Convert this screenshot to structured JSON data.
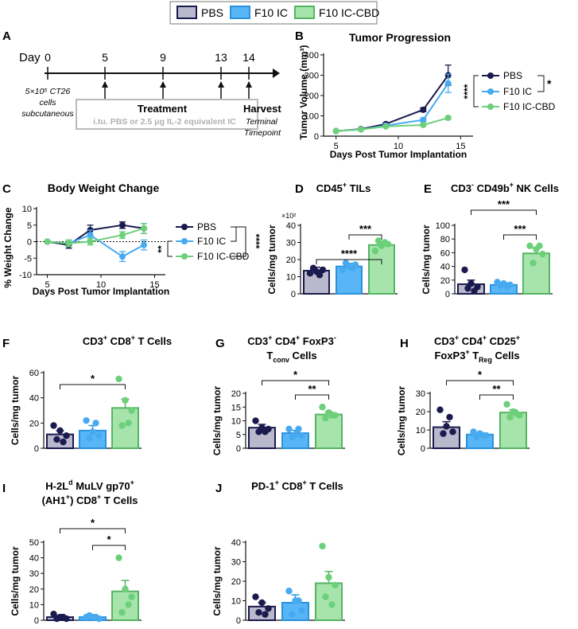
{
  "groups": [
    {
      "name": "PBS",
      "color": "#1a1a4e",
      "fill": "#b9b8cc"
    },
    {
      "name": "F10 IC",
      "color": "#47aaf0",
      "fill": "#58b6f7"
    },
    {
      "name": "F10 IC-CBD",
      "color": "#6cd07a",
      "fill": "#a6e4ac"
    }
  ],
  "legend": [
    "PBS",
    "F10 IC",
    "F10 IC-CBD"
  ],
  "panelA": {
    "letter": "A",
    "day_label": "Day",
    "days": [
      "0",
      "5",
      "9",
      "13",
      "14"
    ],
    "cells_line1": "5×10⁵ CT26",
    "cells_line2": "cells",
    "cells_line3": "subcutaneous",
    "treatment_title": "Treatment",
    "treatment_detail": "i.tu. PBS or 2.5 μg IL-2 equivalent IC",
    "harvest_title": "Harvest",
    "harvest_line1": "Terminal",
    "harvest_line2": "Timepoint"
  },
  "stars": {
    "s1": "*",
    "s2": "**",
    "s3": "***",
    "s4": "****"
  },
  "chart_data": [
    {
      "panel": "B",
      "type": "line",
      "title": "Tumor Progression",
      "xlabel": "Days Post Tumor Implantation",
      "ylabel": "Tumor Volume (mm³)",
      "xlim": [
        4,
        16
      ],
      "ylim": [
        0,
        400
      ],
      "xticks": [
        "5",
        "10",
        "15"
      ],
      "yticks": [
        "0",
        "100",
        "200",
        "300",
        "400"
      ],
      "x": [
        5,
        7,
        9,
        12,
        14
      ],
      "series": [
        {
          "name": "PBS",
          "values": [
            25,
            35,
            60,
            130,
            300
          ],
          "errors": [
            0,
            0,
            5,
            10,
            50
          ]
        },
        {
          "name": "F10 IC",
          "values": [
            25,
            33,
            52,
            80,
            260
          ],
          "errors": [
            0,
            0,
            5,
            10,
            45
          ]
        },
        {
          "name": "F10 IC-CBD",
          "values": [
            25,
            33,
            48,
            55,
            90
          ],
          "errors": [
            0,
            0,
            3,
            5,
            8
          ]
        }
      ],
      "significance": [
        "*",
        "****"
      ]
    },
    {
      "panel": "C",
      "type": "line",
      "title": "Body Weight Change",
      "xlabel": "Days Post Tumor Implantation",
      "ylabel": "% Weight Change",
      "xlim": [
        4,
        16
      ],
      "ylim": [
        -10,
        10
      ],
      "xticks": [
        "5",
        "10",
        "15"
      ],
      "yticks": [
        "-10",
        "-5",
        "0",
        "5",
        "10"
      ],
      "x": [
        5,
        7,
        9,
        12,
        14
      ],
      "series": [
        {
          "name": "PBS",
          "values": [
            0,
            -1,
            3.5,
            5,
            4
          ],
          "errors": [
            0,
            1,
            1.5,
            1,
            1.5
          ]
        },
        {
          "name": "F10 IC",
          "values": [
            0,
            -0.5,
            2,
            -4.5,
            -1
          ],
          "errors": [
            0,
            1,
            1.5,
            1.5,
            1.5
          ]
        },
        {
          "name": "F10 IC-CBD",
          "values": [
            0,
            -0.5,
            0,
            2,
            4
          ],
          "errors": [
            0,
            1,
            1,
            1,
            1.5
          ]
        }
      ],
      "significance": [
        "****",
        "**"
      ]
    },
    {
      "panel": "D",
      "type": "bar",
      "title_parts": [
        "CD45",
        "+",
        " TILs"
      ],
      "ylabel": "Cells/mg tumor",
      "axis_note": "×10²",
      "ylim": [
        0,
        40
      ],
      "yticks": [
        "0",
        "10",
        "20",
        "30",
        "40"
      ],
      "categories": [
        "PBS",
        "F10 IC",
        "F10 IC-CBD"
      ],
      "values": [
        13.5,
        16,
        28.5
      ],
      "errors": [
        2,
        1.8,
        1.5
      ],
      "points": [
        [
          12,
          13,
          14,
          15,
          11
        ],
        [
          14,
          16,
          17,
          18,
          15
        ],
        [
          25,
          28,
          29,
          31,
          30
        ]
      ],
      "significance": [
        {
          "from": 0,
          "to": 2,
          "label": "****"
        },
        {
          "from": 1,
          "to": 2,
          "label": "***"
        }
      ]
    },
    {
      "panel": "E",
      "type": "bar",
      "title_parts": [
        "CD3",
        "-",
        " CD49b",
        "+",
        " NK Cells"
      ],
      "ylabel": "Cells/mg tumor",
      "ylim": [
        0,
        100
      ],
      "yticks": [
        "0",
        "20",
        "40",
        "60",
        "80",
        "100"
      ],
      "categories": [
        "PBS",
        "F10 IC",
        "F10 IC-CBD"
      ],
      "values": [
        14,
        13,
        59
      ],
      "errors": [
        6,
        3,
        8
      ],
      "points": [
        [
          35,
          15,
          10,
          8,
          4
        ],
        [
          17,
          15,
          13,
          12,
          11
        ],
        [
          70,
          65,
          58,
          45,
          70
        ]
      ],
      "significance": [
        {
          "from": 0,
          "to": 2,
          "label": "***"
        },
        {
          "from": 1,
          "to": 2,
          "label": "***"
        }
      ]
    },
    {
      "panel": "F",
      "type": "bar",
      "title_parts": [
        "CD3",
        "+",
        " CD8",
        "+",
        " T Cells"
      ],
      "ylabel": "Cells/mg tumor",
      "ylim": [
        0,
        60
      ],
      "yticks": [
        "0",
        "20",
        "40",
        "60"
      ],
      "categories": [
        "PBS",
        "F10 IC",
        "F10 IC-CBD"
      ],
      "values": [
        11,
        14,
        32
      ],
      "errors": [
        3,
        4,
        7
      ],
      "points": [
        [
          18,
          14,
          10,
          7,
          5
        ],
        [
          22,
          13,
          10,
          8,
          20
        ],
        [
          55,
          38,
          30,
          18,
          20
        ]
      ],
      "significance": [
        {
          "from": 0,
          "to": 2,
          "label": "*"
        }
      ]
    },
    {
      "panel": "G",
      "type": "bar",
      "title_parts": [
        "CD3",
        "+",
        " CD4",
        "+",
        " FoxP3",
        "-"
      ],
      "title2_parts": [
        "T",
        "conv",
        " Cells"
      ],
      "ylabel": "Cells/mg tumor",
      "ylim": [
        0,
        20
      ],
      "yticks": [
        "0",
        "5",
        "10",
        "15",
        "20"
      ],
      "categories": [
        "PBS",
        "F10 IC",
        "F10 IC-CBD"
      ],
      "values": [
        7.5,
        5.5,
        12.3
      ],
      "errors": [
        1.2,
        1,
        1
      ],
      "points": [
        [
          10,
          7.5,
          7,
          6,
          6
        ],
        [
          7,
          5,
          4.5,
          4,
          7
        ],
        [
          15,
          13,
          12,
          11,
          12
        ]
      ],
      "significance": [
        {
          "from": 0,
          "to": 2,
          "label": "*"
        },
        {
          "from": 1,
          "to": 2,
          "label": "**"
        }
      ]
    },
    {
      "panel": "H",
      "type": "bar",
      "title_parts": [
        "CD3",
        "+",
        " CD4",
        "+",
        " CD25",
        "+"
      ],
      "title2_parts": [
        "FoxP3",
        "+",
        " T",
        "Reg",
        " Cells"
      ],
      "ylabel": "Cells/mg tumor",
      "ylim": [
        0,
        30
      ],
      "yticks": [
        "0",
        "10",
        "20",
        "30"
      ],
      "categories": [
        "PBS",
        "F10 IC",
        "F10 IC-CBD"
      ],
      "values": [
        11.5,
        7.5,
        19.5
      ],
      "errors": [
        3,
        1,
        1.5
      ],
      "points": [
        [
          21,
          12,
          9,
          8,
          17
        ],
        [
          9,
          8,
          7,
          6,
          7
        ],
        [
          24,
          20,
          18,
          17,
          19
        ]
      ],
      "significance": [
        {
          "from": 0,
          "to": 2,
          "label": "*"
        },
        {
          "from": 1,
          "to": 2,
          "label": "**"
        }
      ]
    },
    {
      "panel": "I",
      "type": "bar",
      "title_parts": [
        "H-2L",
        "d",
        " MuLV gp70",
        "+"
      ],
      "title2_parts": [
        "(AH1",
        "+",
        ") CD8",
        "+",
        " T Cells"
      ],
      "ylabel": "Cells/mg tumor",
      "ylim": [
        0,
        50
      ],
      "yticks": [
        "0",
        "10",
        "20",
        "30",
        "40",
        "50"
      ],
      "categories": [
        "PBS",
        "F10 IC",
        "F10 IC-CBD"
      ],
      "values": [
        2,
        2,
        18.5
      ],
      "errors": [
        1,
        0.5,
        7
      ],
      "points": [
        [
          4,
          2,
          1,
          1,
          2
        ],
        [
          2,
          2,
          1,
          3,
          2
        ],
        [
          40,
          20,
          15,
          5,
          10
        ]
      ],
      "significance": [
        {
          "from": 0,
          "to": 2,
          "label": "*"
        },
        {
          "from": 1,
          "to": 2,
          "label": "*"
        }
      ]
    },
    {
      "panel": "J",
      "type": "bar",
      "title_parts": [
        "PD-1",
        "+",
        " CD8",
        "+",
        " T Cells"
      ],
      "ylabel": "Cells/mg tumor",
      "ylim": [
        0,
        40
      ],
      "yticks": [
        "0",
        "10",
        "20",
        "30",
        "40"
      ],
      "categories": [
        "PBS",
        "F10 IC",
        "F10 IC-CBD"
      ],
      "values": [
        7,
        9,
        19
      ],
      "errors": [
        2,
        4,
        6
      ],
      "points": [
        [
          12,
          9,
          6,
          4,
          3
        ],
        [
          15,
          10,
          5,
          3,
          10
        ],
        [
          38,
          22,
          18,
          12,
          8
        ]
      ],
      "significance": []
    }
  ]
}
